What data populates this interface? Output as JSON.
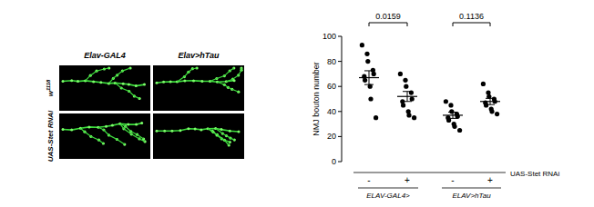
{
  "image_panel": {
    "column_labels": [
      "Elav-GAL4",
      "Elav>hTau"
    ],
    "row_labels": [
      {
        "text": "w",
        "superscript": "1118"
      },
      {
        "text": "UAS-Stet RNAi"
      }
    ]
  },
  "chart_data": {
    "type": "dot",
    "y_label": "NMJ bouton number",
    "categories": [
      null,
      null,
      null,
      null
    ],
    "values": [
      67,
      52,
      37,
      48
    ],
    "error": [
      5.5,
      4,
      2.5,
      2.5
    ],
    "points": [
      [
        93,
        86,
        80,
        73,
        70,
        68,
        65,
        60,
        50,
        35
      ],
      [
        70,
        65,
        60,
        55,
        50,
        48,
        45,
        40,
        37,
        35
      ],
      [
        48,
        45,
        40,
        38,
        36,
        35,
        33,
        30,
        28,
        25
      ],
      [
        62,
        55,
        52,
        50,
        48,
        47,
        45,
        42,
        40,
        38
      ]
    ],
    "color": "#000000",
    "ylim": [
      0,
      100
    ],
    "yticks": [
      0,
      20,
      40,
      60,
      80,
      100
    ],
    "grid": false,
    "comparisons": [
      {
        "between": [
          0,
          1
        ],
        "p_value": 0.0159
      },
      {
        "between": [
          2,
          3
        ],
        "p_value": 0.1136
      }
    ],
    "factor": {
      "label": "UAS-Stet RNAi",
      "levels": [
        "-",
        "+",
        "-",
        "+"
      ]
    },
    "group_labels": [
      "ELAV-GAL4>",
      "ELAV>hTau"
    ]
  }
}
